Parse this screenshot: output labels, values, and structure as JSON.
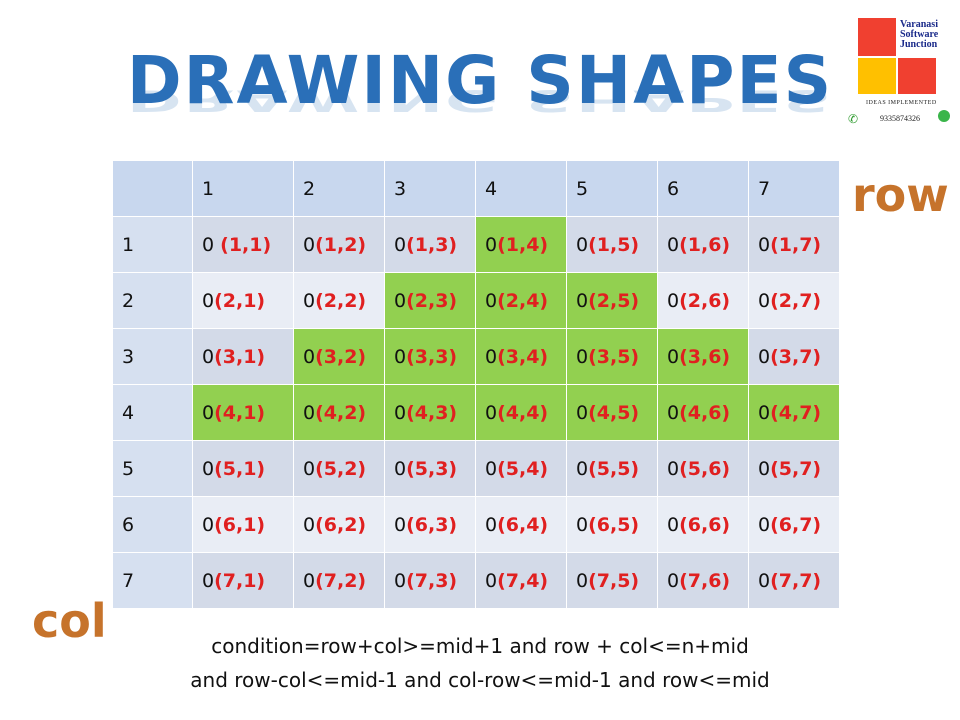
{
  "title": "DRAWING SHAPES",
  "logo": {
    "line1": "Varanasi",
    "line2": "Software",
    "line3": "Junction",
    "tagline": "IDEAS IMPLEMENTED",
    "phone": "9335874326",
    "colors": [
      "#f04030",
      "#f04030",
      "#ffc000",
      "#f04030"
    ]
  },
  "row_label": "row",
  "col_label": "col",
  "columns": [
    "1",
    "2",
    "3",
    "4",
    "5",
    "6",
    "7"
  ],
  "rows": [
    {
      "label": "1",
      "cells": [
        {
          "v": "0 ",
          "c": "(1,1)"
        },
        {
          "v": "0",
          "c": "(1,2)"
        },
        {
          "v": "0",
          "c": "(1,3)"
        },
        {
          "v": "0",
          "c": "(1,4)",
          "g": true
        },
        {
          "v": "0",
          "c": "(1,5)"
        },
        {
          "v": "0",
          "c": "(1,6)"
        },
        {
          "v": "0",
          "c": "(1,7)"
        }
      ]
    },
    {
      "label": "2",
      "cells": [
        {
          "v": "0",
          "c": "(2,1)"
        },
        {
          "v": "0",
          "c": "(2,2)"
        },
        {
          "v": "0",
          "c": "(2,3)",
          "g": true
        },
        {
          "v": "0",
          "c": "(2,4)",
          "g": true
        },
        {
          "v": "0",
          "c": "(2,5)",
          "g": true
        },
        {
          "v": "0",
          "c": "(2,6)"
        },
        {
          "v": "0",
          "c": "(2,7)"
        }
      ]
    },
    {
      "label": "3",
      "cells": [
        {
          "v": "0",
          "c": "(3,1)"
        },
        {
          "v": "0",
          "c": "(3,2)",
          "g": true
        },
        {
          "v": "0",
          "c": "(3,3)",
          "g": true
        },
        {
          "v": "0",
          "c": "(3,4)",
          "g": true
        },
        {
          "v": "0",
          "c": "(3,5)",
          "g": true
        },
        {
          "v": "0",
          "c": "(3,6)",
          "g": true
        },
        {
          "v": "0",
          "c": "(3,7)"
        }
      ]
    },
    {
      "label": "4",
      "cells": [
        {
          "v": "0",
          "c": "(4,1)",
          "g": true
        },
        {
          "v": "0",
          "c": "(4,2)",
          "g": true
        },
        {
          "v": "0",
          "c": "(4,3)",
          "g": true
        },
        {
          "v": "0",
          "c": "(4,4)",
          "g": true
        },
        {
          "v": "0",
          "c": "(4,5)",
          "g": true
        },
        {
          "v": "0",
          "c": "(4,6)",
          "g": true
        },
        {
          "v": "0",
          "c": "(4,7)",
          "g": true
        }
      ]
    },
    {
      "label": "5",
      "cells": [
        {
          "v": "0",
          "c": "(5,1)"
        },
        {
          "v": "0",
          "c": "(5,2)"
        },
        {
          "v": "0",
          "c": "(5,3)"
        },
        {
          "v": "0",
          "c": "(5,4)"
        },
        {
          "v": "0",
          "c": "(5,5)"
        },
        {
          "v": "0",
          "c": "(5,6)"
        },
        {
          "v": "0",
          "c": "(5,7)"
        }
      ]
    },
    {
      "label": "6",
      "cells": [
        {
          "v": "0",
          "c": "(6,1)"
        },
        {
          "v": "0",
          "c": "(6,2)"
        },
        {
          "v": "0",
          "c": "(6,3)"
        },
        {
          "v": "0",
          "c": "(6,4)"
        },
        {
          "v": "0",
          "c": "(6,5)"
        },
        {
          "v": "0",
          "c": "(6,6)"
        },
        {
          "v": "0",
          "c": "(6,7)"
        }
      ]
    },
    {
      "label": "7",
      "cells": [
        {
          "v": "0",
          "c": "(7,1)"
        },
        {
          "v": "0",
          "c": "(7,2)"
        },
        {
          "v": "0",
          "c": "(7,3)"
        },
        {
          "v": "0",
          "c": "(7,4)"
        },
        {
          "v": "0",
          "c": "(7,5)"
        },
        {
          "v": "0",
          "c": "(7,6)"
        },
        {
          "v": "0",
          "c": "(7,7)"
        }
      ]
    }
  ],
  "condition_line1": "condition=row+col>=mid+1 and row + col<=n+mid",
  "condition_line2": "and row-col<=mid-1 and col-row<=mid-1 and row<=mid"
}
